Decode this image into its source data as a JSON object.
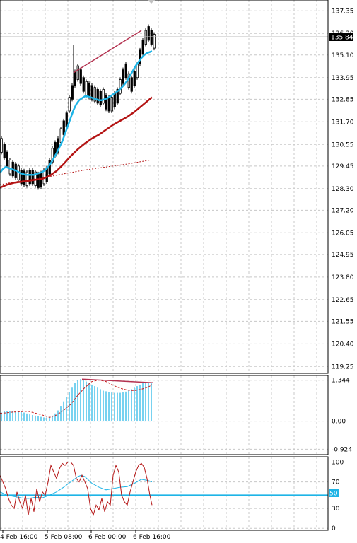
{
  "chart_data": [
    {
      "type": "candlestick",
      "panel": "price",
      "ylim": [
        118.9,
        137.9
      ],
      "y_ticks": [
        "137.35",
        "136.20",
        "135.10",
        "133.95",
        "132.85",
        "131.70",
        "130.55",
        "129.45",
        "128.30",
        "127.20",
        "126.05",
        "124.95",
        "123.80",
        "122.65",
        "121.55",
        "120.40",
        "119.25"
      ],
      "current_price": "135.84",
      "grid": true,
      "series": [
        {
          "name": "fast-ma",
          "color": "#1eb4e6",
          "x": [
            0,
            4,
            8,
            12,
            16,
            20,
            24,
            28,
            32,
            36,
            40,
            44,
            48,
            52,
            56,
            60,
            64,
            68,
            72,
            76,
            80,
            84,
            88,
            92,
            96,
            100,
            104,
            108,
            112,
            116,
            120,
            124,
            128,
            132,
            136,
            140,
            144,
            148,
            152,
            156,
            160,
            164,
            168,
            172,
            176,
            180,
            184,
            188,
            192,
            196,
            200,
            204,
            208,
            212,
            215
          ],
          "y": [
            129.1,
            129.3,
            129.4,
            129.35,
            129.3,
            129.25,
            129.2,
            129.1,
            129.05,
            129.0,
            129.0,
            129.0,
            129.0,
            129.05,
            129.1,
            129.15,
            129.25,
            129.4,
            129.6,
            129.85,
            130.1,
            130.4,
            130.7,
            131.1,
            131.5,
            131.9,
            132.3,
            132.6,
            132.8,
            132.9,
            133.0,
            133.0,
            132.95,
            132.9,
            132.85,
            132.8,
            132.8,
            132.85,
            132.9,
            133.0,
            133.1,
            133.2,
            133.3,
            133.45,
            133.6,
            133.8,
            134.05,
            134.3,
            134.55,
            134.75,
            134.95,
            135.1,
            135.2,
            135.25,
            135.3
          ]
        },
        {
          "name": "slow-ma",
          "color": "#b41414",
          "x": [
            0,
            10,
            20,
            30,
            40,
            50,
            60,
            70,
            80,
            90,
            100,
            110,
            120,
            130,
            140,
            150,
            160,
            170,
            180,
            190,
            200,
            210,
            215
          ],
          "y": [
            128.35,
            128.5,
            128.6,
            128.65,
            128.7,
            128.75,
            128.8,
            128.95,
            129.2,
            129.55,
            129.95,
            130.3,
            130.6,
            130.85,
            131.05,
            131.3,
            131.55,
            131.75,
            131.95,
            132.2,
            132.5,
            132.8,
            132.95
          ]
        },
        {
          "name": "long-ma",
          "color": "#b41414",
          "style": "dotted",
          "x": [
            0,
            30,
            60,
            90,
            120,
            150,
            180,
            212
          ],
          "y": [
            128.5,
            128.7,
            128.85,
            129.05,
            129.25,
            129.4,
            129.55,
            129.75
          ]
        },
        {
          "name": "trend-line",
          "color": "#b43250",
          "x": [
            104,
            200
          ],
          "y": [
            134.2,
            136.35
          ]
        }
      ]
    },
    {
      "type": "histogram",
      "panel": "oscillator",
      "ylim": [
        -1.1,
        1.5
      ],
      "y_ticks": [
        "1.344",
        "0.00",
        "-0.924"
      ],
      "x": [
        2,
        6,
        10,
        14,
        18,
        22,
        26,
        30,
        34,
        38,
        42,
        46,
        50,
        54,
        58,
        62,
        66,
        70,
        74,
        78,
        82,
        86,
        90,
        94,
        98,
        102,
        106,
        110,
        114,
        118,
        122,
        126,
        130,
        134,
        138,
        142,
        146,
        150,
        154,
        158,
        162,
        166,
        170,
        174,
        178,
        182,
        186,
        190,
        194,
        198,
        202,
        206,
        210,
        214
      ],
      "values": [
        0.28,
        0.32,
        0.33,
        0.33,
        0.33,
        0.32,
        0.32,
        0.3,
        0.28,
        0.25,
        0.22,
        0.2,
        0.18,
        0.16,
        0.14,
        0.12,
        0.12,
        0.14,
        0.18,
        0.25,
        0.35,
        0.5,
        0.65,
        0.8,
        0.95,
        1.1,
        1.25,
        1.35,
        1.38,
        1.34,
        1.3,
        1.25,
        1.2,
        1.15,
        1.1,
        1.05,
        1.0,
        0.98,
        0.95,
        0.94,
        0.93,
        0.93,
        0.93,
        0.95,
        0.97,
        1.0,
        1.05,
        1.1,
        1.15,
        1.2,
        1.25,
        1.27,
        1.25,
        1.26
      ],
      "series": [
        {
          "name": "signal",
          "color": "#c81e1e",
          "style": "dashed",
          "x": [
            0,
            20,
            40,
            60,
            70,
            80,
            90,
            100,
            110,
            120,
            130,
            140,
            150,
            160,
            170,
            180,
            190,
            200,
            210,
            215
          ],
          "y": [
            0.25,
            0.3,
            0.32,
            0.2,
            0.12,
            0.2,
            0.35,
            0.55,
            0.85,
            1.1,
            1.3,
            1.35,
            1.3,
            1.18,
            1.08,
            1.02,
            1.0,
            1.05,
            1.12,
            1.2
          ]
        },
        {
          "name": "divergence-line",
          "color": "#b43250",
          "x": [
            116,
            216
          ],
          "y": [
            1.38,
            1.26
          ]
        }
      ]
    },
    {
      "type": "line",
      "panel": "rsi",
      "ylim": [
        -3,
        108
      ],
      "y_ticks": [
        "100",
        "70",
        "50",
        "30",
        "0"
      ],
      "level": "50",
      "series": [
        {
          "name": "rsi-1",
          "color": "#b41414",
          "x": [
            0,
            4,
            8,
            12,
            16,
            20,
            24,
            28,
            32,
            36,
            40,
            44,
            48,
            52,
            56,
            60,
            64,
            68,
            72,
            76,
            80,
            84,
            88,
            92,
            96,
            100,
            104,
            108,
            112,
            116,
            120,
            124,
            128,
            132,
            136,
            140,
            144,
            148,
            152,
            156,
            160,
            164,
            168,
            172,
            176,
            180,
            184,
            188,
            192,
            196,
            200,
            204,
            208,
            212,
            215
          ],
          "y": [
            80,
            70,
            60,
            45,
            35,
            30,
            55,
            40,
            30,
            50,
            20,
            45,
            25,
            60,
            40,
            55,
            50,
            70,
            95,
            85,
            75,
            90,
            98,
            95,
            100,
            100,
            95,
            75,
            70,
            80,
            70,
            60,
            30,
            20,
            35,
            28,
            45,
            25,
            40,
            35,
            80,
            95,
            85,
            50,
            40,
            35,
            55,
            70,
            85,
            95,
            98,
            92,
            75,
            50,
            35
          ]
        },
        {
          "name": "rsi-2",
          "color": "#1eb4e6",
          "x": [
            0,
            10,
            20,
            30,
            40,
            50,
            60,
            70,
            80,
            90,
            100,
            110,
            115,
            120,
            130,
            140,
            150,
            160,
            170,
            180,
            190,
            200,
            210,
            215
          ],
          "y": [
            55,
            50,
            48,
            46,
            45,
            47,
            46,
            50,
            55,
            62,
            70,
            78,
            80,
            78,
            68,
            62,
            58,
            60,
            62,
            63,
            68,
            74,
            72,
            70
          ]
        }
      ]
    }
  ],
  "x_axis": {
    "tick_labels": [
      "4 Feb 16:00",
      "5 Feb 08:00",
      "6 Feb 00:00",
      "6 Feb 16:00"
    ],
    "tick_positions": [
      4,
      67,
      129,
      192
    ]
  }
}
